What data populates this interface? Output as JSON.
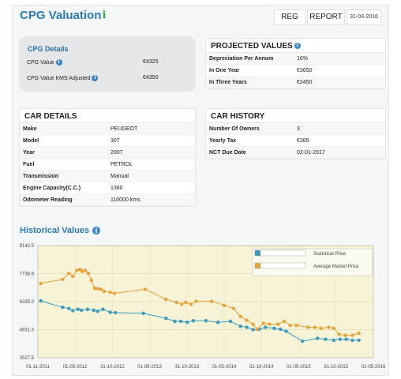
{
  "header": {
    "title": "CPG Valuation",
    "reg_label": "REG",
    "report_label": "REPORT",
    "date": "31-03-2016"
  },
  "cpg_details": {
    "title": "CPG Details",
    "rows": [
      {
        "label": "CPG Value",
        "value": "€4325"
      },
      {
        "label": "CPG Value KMS Adjusted",
        "value": "€4350"
      }
    ]
  },
  "projected_values": {
    "title": "PROJECTED VALUES",
    "rows": [
      {
        "label": "Depreciation Per Annum",
        "value": "16%"
      },
      {
        "label": "In One Year",
        "value": "€3650"
      },
      {
        "label": "In Three Years",
        "value": "€2450"
      }
    ]
  },
  "car_details": {
    "title": "CAR DETAILS",
    "rows": [
      {
        "label": "Make",
        "value": "PEUGEOT"
      },
      {
        "label": "Model",
        "value": "307"
      },
      {
        "label": "Year",
        "value": "2007"
      },
      {
        "label": "Fuel",
        "value": "PETROL"
      },
      {
        "label": "Transmission",
        "value": "Manual"
      },
      {
        "label": "Engine Capacity(C.C.)",
        "value": "1360"
      },
      {
        "label": "Odometer Reading",
        "value": "110000 kms"
      }
    ]
  },
  "car_history": {
    "title": "CAR HISTORY",
    "rows": [
      {
        "label": "Number Of Owners",
        "value": "3"
      },
      {
        "label": "Yearly Tax",
        "value": "€385"
      },
      {
        "label": "NCT Due Date",
        "value": "02-01-2017"
      }
    ]
  },
  "historical": {
    "title": "Historical Values"
  },
  "colors": {
    "accent": "#2c7bb6",
    "statistical": "#3a9bbf",
    "market": "#e5a33a",
    "plot_bg": "#f6f3d6"
  },
  "chart_data": {
    "type": "line",
    "title": "",
    "xlabel": "",
    "ylabel": "",
    "ylim": [
      3527.5,
      9142.5
    ],
    "xlim": [
      "2011-11-01",
      "2016-05-01"
    ],
    "y_ticks": [
      "9142.5",
      "7738.8",
      "6335.0",
      "4931.3",
      "3527.5"
    ],
    "x_ticks": [
      "01-11-2011",
      "01-05-2012",
      "31-10-2012",
      "01-05-2013",
      "31-10-2013",
      "01-05-2014",
      "31-10-2014",
      "01-05-2015",
      "31-10-2015",
      "01-05-2016"
    ],
    "legend_position": "top-right",
    "series": [
      {
        "name": "Statistical Price",
        "color": "#3a9bbf",
        "points": [
          [
            "2011-11-15",
            6370
          ],
          [
            "2012-03-01",
            6050
          ],
          [
            "2012-04-01",
            5990
          ],
          [
            "2012-04-20",
            5880
          ],
          [
            "2012-05-15",
            5950
          ],
          [
            "2012-06-01",
            5900
          ],
          [
            "2012-07-01",
            5950
          ],
          [
            "2012-08-01",
            5900
          ],
          [
            "2012-08-20",
            5850
          ],
          [
            "2012-09-15",
            5950
          ],
          [
            "2012-10-20",
            5800
          ],
          [
            "2012-11-15",
            5780
          ],
          [
            "2013-04-01",
            5750
          ],
          [
            "2013-07-20",
            5500
          ],
          [
            "2013-09-01",
            5350
          ],
          [
            "2013-10-01",
            5350
          ],
          [
            "2013-11-01",
            5300
          ],
          [
            "2013-12-01",
            5380
          ],
          [
            "2014-02-01",
            5380
          ],
          [
            "2014-04-01",
            5300
          ],
          [
            "2014-06-01",
            5350
          ],
          [
            "2014-07-20",
            5100
          ],
          [
            "2014-08-20",
            5050
          ],
          [
            "2014-09-20",
            4930
          ],
          [
            "2014-10-20",
            4950
          ],
          [
            "2014-11-20",
            5050
          ],
          [
            "2015-01-01",
            5000
          ],
          [
            "2015-02-01",
            4950
          ],
          [
            "2015-03-01",
            4850
          ],
          [
            "2015-05-20",
            4350
          ],
          [
            "2015-08-01",
            4500
          ],
          [
            "2015-09-10",
            4450
          ],
          [
            "2015-10-20",
            4400
          ],
          [
            "2015-11-20",
            4450
          ],
          [
            "2015-12-20",
            4450
          ],
          [
            "2016-01-20",
            4400
          ],
          [
            "2016-02-20",
            4400
          ]
        ]
      },
      {
        "name": "Average Market Price",
        "color": "#e5a33a",
        "points": [
          [
            "2011-11-15",
            7250
          ],
          [
            "2012-03-01",
            7450
          ],
          [
            "2012-04-01",
            7750
          ],
          [
            "2012-04-20",
            7600
          ],
          [
            "2012-05-10",
            7900
          ],
          [
            "2012-05-25",
            7950
          ],
          [
            "2012-06-05",
            7850
          ],
          [
            "2012-06-20",
            7900
          ],
          [
            "2012-07-05",
            7750
          ],
          [
            "2012-07-20",
            7400
          ],
          [
            "2012-08-05",
            7000
          ],
          [
            "2012-08-20",
            6980
          ],
          [
            "2012-09-05",
            6950
          ],
          [
            "2012-09-20",
            6850
          ],
          [
            "2012-10-20",
            6800
          ],
          [
            "2012-11-10",
            6750
          ],
          [
            "2013-04-10",
            6950
          ],
          [
            "2013-07-20",
            6450
          ],
          [
            "2013-09-10",
            6300
          ],
          [
            "2013-10-05",
            6200
          ],
          [
            "2013-10-25",
            6300
          ],
          [
            "2013-11-20",
            6200
          ],
          [
            "2013-12-15",
            6350
          ],
          [
            "2014-03-01",
            6350
          ],
          [
            "2014-05-01",
            6150
          ],
          [
            "2014-06-15",
            6000
          ],
          [
            "2014-07-20",
            5600
          ],
          [
            "2014-08-20",
            5400
          ],
          [
            "2014-09-20",
            5200
          ],
          [
            "2014-10-10",
            4950
          ],
          [
            "2014-11-10",
            5250
          ],
          [
            "2014-12-10",
            5200
          ],
          [
            "2015-01-20",
            5200
          ],
          [
            "2015-02-20",
            5350
          ],
          [
            "2015-03-20",
            5150
          ],
          [
            "2015-04-20",
            5150
          ],
          [
            "2015-06-15",
            5050
          ],
          [
            "2015-07-20",
            5050
          ],
          [
            "2015-08-20",
            5000
          ],
          [
            "2015-09-25",
            5050
          ],
          [
            "2015-10-20",
            5000
          ],
          [
            "2015-11-15",
            4700
          ],
          [
            "2015-12-15",
            4650
          ],
          [
            "2016-01-20",
            4650
          ],
          [
            "2016-02-20",
            4750
          ]
        ]
      }
    ]
  }
}
